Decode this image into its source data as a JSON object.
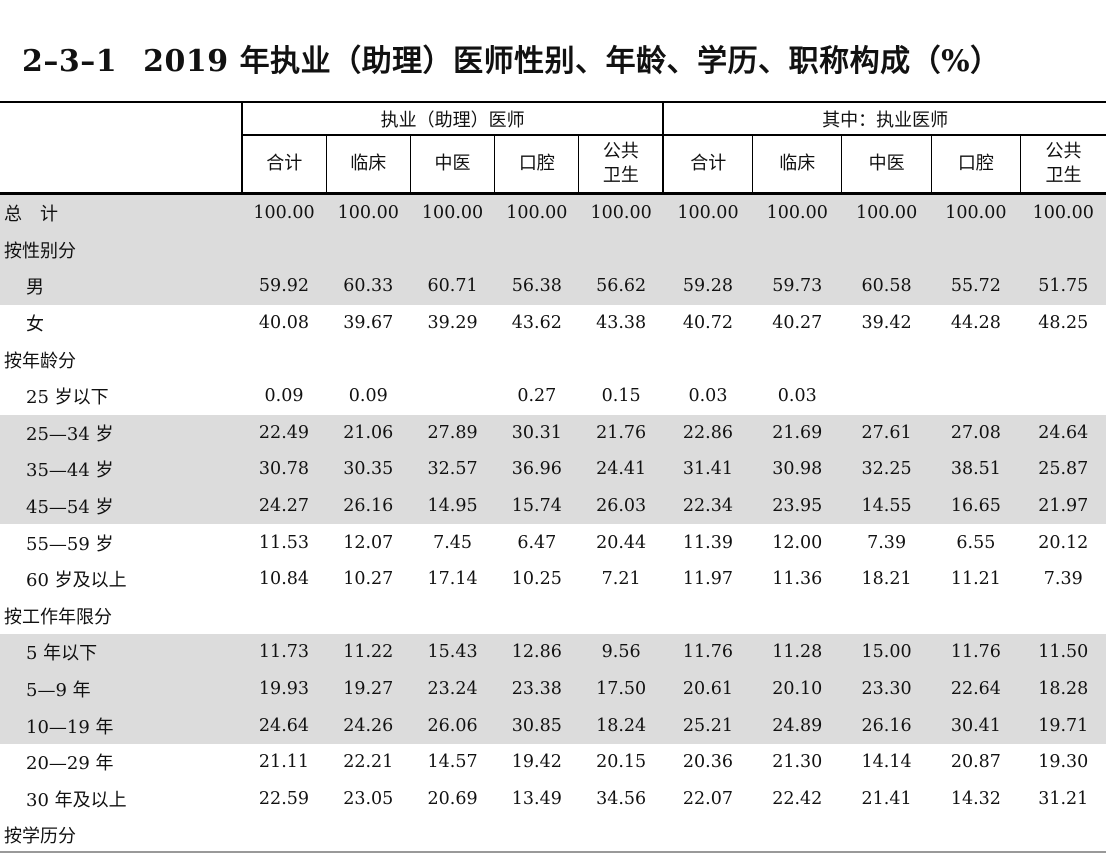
{
  "title": {
    "code": "2–3–1",
    "text": "2019 年执业（助理）医师性别、年龄、学历、职称构成（%）"
  },
  "header": {
    "group1": "执业（助理）医师",
    "group2": "其中：执业医师",
    "cols": [
      "合计",
      "临床",
      "中医",
      "口腔",
      "公共卫生",
      "合计",
      "临床",
      "中医",
      "口腔",
      "公共卫生"
    ],
    "col_line1": [
      "合计",
      "临床",
      "中医",
      "口腔",
      "公共",
      "合计",
      "临床",
      "中医",
      "口腔",
      "公共"
    ],
    "col_line2": [
      "",
      "",
      "",
      "",
      "卫生",
      "",
      "",
      "",
      "",
      "卫生"
    ]
  },
  "rows": [
    {
      "label": "总　计",
      "indent": false,
      "shade": true,
      "values": [
        "100.00",
        "100.00",
        "100.00",
        "100.00",
        "100.00",
        "100.00",
        "100.00",
        "100.00",
        "100.00",
        "100.00"
      ]
    },
    {
      "label": "按性别分",
      "indent": false,
      "shade": true,
      "values": [
        "",
        "",
        "",
        "",
        "",
        "",
        "",
        "",
        "",
        ""
      ]
    },
    {
      "label": "男",
      "indent": true,
      "shade": true,
      "values": [
        "59.92",
        "60.33",
        "60.71",
        "56.38",
        "56.62",
        "59.28",
        "59.73",
        "60.58",
        "55.72",
        "51.75"
      ]
    },
    {
      "label": "女",
      "indent": true,
      "shade": false,
      "values": [
        "40.08",
        "39.67",
        "39.29",
        "43.62",
        "43.38",
        "40.72",
        "40.27",
        "39.42",
        "44.28",
        "48.25"
      ]
    },
    {
      "label": "按年龄分",
      "indent": false,
      "shade": false,
      "values": [
        "",
        "",
        "",
        "",
        "",
        "",
        "",
        "",
        "",
        ""
      ]
    },
    {
      "label": "25 岁以下",
      "indent": true,
      "shade": false,
      "values": [
        "0.09",
        "0.09",
        "",
        "0.27",
        "0.15",
        "0.03",
        "0.03",
        "",
        "",
        ""
      ]
    },
    {
      "label": "25—34 岁",
      "indent": true,
      "shade": true,
      "values": [
        "22.49",
        "21.06",
        "27.89",
        "30.31",
        "21.76",
        "22.86",
        "21.69",
        "27.61",
        "27.08",
        "24.64"
      ]
    },
    {
      "label": "35—44 岁",
      "indent": true,
      "shade": true,
      "values": [
        "30.78",
        "30.35",
        "32.57",
        "36.96",
        "24.41",
        "31.41",
        "30.98",
        "32.25",
        "38.51",
        "25.87"
      ]
    },
    {
      "label": "45—54 岁",
      "indent": true,
      "shade": true,
      "values": [
        "24.27",
        "26.16",
        "14.95",
        "15.74",
        "26.03",
        "22.34",
        "23.95",
        "14.55",
        "16.65",
        "21.97"
      ]
    },
    {
      "label": "55—59 岁",
      "indent": true,
      "shade": false,
      "values": [
        "11.53",
        "12.07",
        "7.45",
        "6.47",
        "20.44",
        "11.39",
        "12.00",
        "7.39",
        "6.55",
        "20.12"
      ]
    },
    {
      "label": "60 岁及以上",
      "indent": true,
      "shade": false,
      "values": [
        "10.84",
        "10.27",
        "17.14",
        "10.25",
        "7.21",
        "11.97",
        "11.36",
        "18.21",
        "11.21",
        "7.39"
      ]
    },
    {
      "label": "按工作年限分",
      "indent": false,
      "shade": false,
      "values": [
        "",
        "",
        "",
        "",
        "",
        "",
        "",
        "",
        "",
        ""
      ]
    },
    {
      "label": "5 年以下",
      "indent": true,
      "shade": true,
      "values": [
        "11.73",
        "11.22",
        "15.43",
        "12.86",
        "9.56",
        "11.76",
        "11.28",
        "15.00",
        "11.76",
        "11.50"
      ]
    },
    {
      "label": "5—9 年",
      "indent": true,
      "shade": true,
      "values": [
        "19.93",
        "19.27",
        "23.24",
        "23.38",
        "17.50",
        "20.61",
        "20.10",
        "23.30",
        "22.64",
        "18.28"
      ]
    },
    {
      "label": "10—19 年",
      "indent": true,
      "shade": true,
      "values": [
        "24.64",
        "24.26",
        "26.06",
        "30.85",
        "18.24",
        "25.21",
        "24.89",
        "26.16",
        "30.41",
        "19.71"
      ]
    },
    {
      "label": "20—29 年",
      "indent": true,
      "shade": false,
      "values": [
        "21.11",
        "22.21",
        "14.57",
        "19.42",
        "20.15",
        "20.36",
        "21.30",
        "14.14",
        "20.87",
        "19.30"
      ]
    },
    {
      "label": "30 年及以上",
      "indent": true,
      "shade": false,
      "values": [
        "22.59",
        "23.05",
        "20.69",
        "13.49",
        "34.56",
        "22.07",
        "22.42",
        "21.41",
        "14.32",
        "31.21"
      ]
    },
    {
      "label": "按学历分",
      "indent": false,
      "shade": false,
      "values": [
        "",
        "",
        "",
        "",
        "",
        "",
        "",
        "",
        "",
        ""
      ]
    }
  ]
}
